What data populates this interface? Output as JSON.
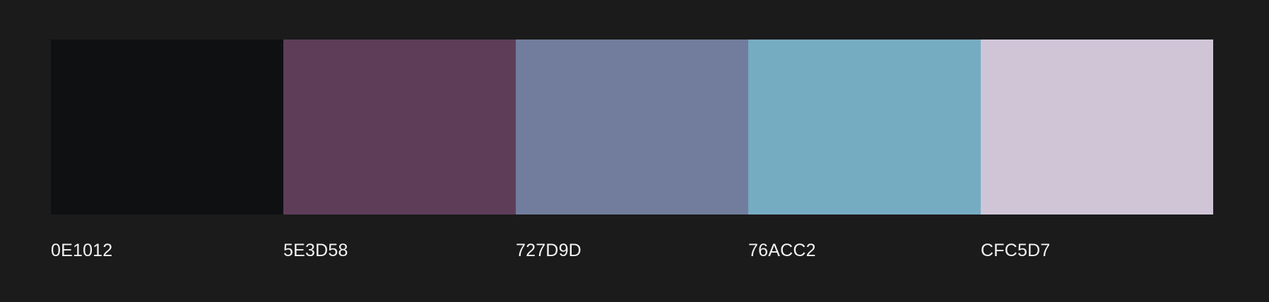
{
  "background": "#1b1b1b",
  "palette": {
    "colors": [
      {
        "hex": "#0E1012",
        "label": "0E1012"
      },
      {
        "hex": "#5E3D58",
        "label": "5E3D58"
      },
      {
        "hex": "#727D9D",
        "label": "727D9D"
      },
      {
        "hex": "#76ACC2",
        "label": "76ACC2"
      },
      {
        "hex": "#CFC5D7",
        "label": "CFC5D7"
      }
    ]
  }
}
